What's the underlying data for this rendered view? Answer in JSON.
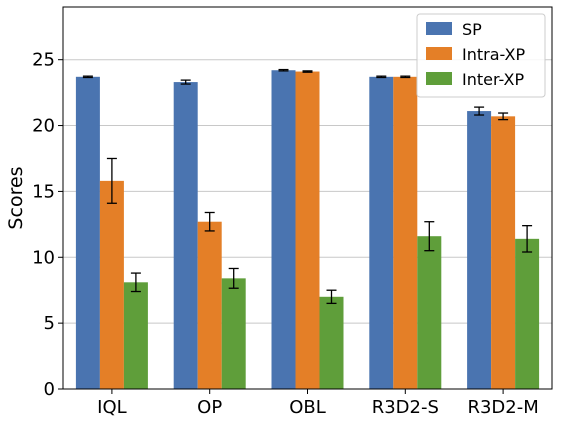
{
  "chart_data": {
    "type": "bar",
    "categories": [
      "IQL",
      "OP",
      "OBL",
      "R3D2-S",
      "R3D2-M"
    ],
    "ylabel": "Scores",
    "xlabel": "",
    "ylim": [
      0,
      29
    ],
    "yticks": [
      0,
      5,
      10,
      15,
      20,
      25
    ],
    "grid": "horizontal",
    "legend_position": "top-right",
    "series": [
      {
        "name": "SP",
        "color": "#4a74b0",
        "values": [
          23.7,
          23.3,
          24.2,
          23.7,
          21.1
        ],
        "errors": [
          0.05,
          0.15,
          0.05,
          0.05,
          0.3
        ]
      },
      {
        "name": "Intra-XP",
        "color": "#e47f27",
        "values": [
          15.8,
          12.7,
          24.1,
          23.7,
          20.7
        ],
        "errors": [
          1.7,
          0.7,
          0.05,
          0.05,
          0.25
        ]
      },
      {
        "name": "Inter-XP",
        "color": "#5f9e3a",
        "values": [
          8.1,
          8.4,
          7.0,
          11.6,
          11.4
        ],
        "errors": [
          0.7,
          0.75,
          0.5,
          1.1,
          1.0
        ]
      }
    ]
  }
}
